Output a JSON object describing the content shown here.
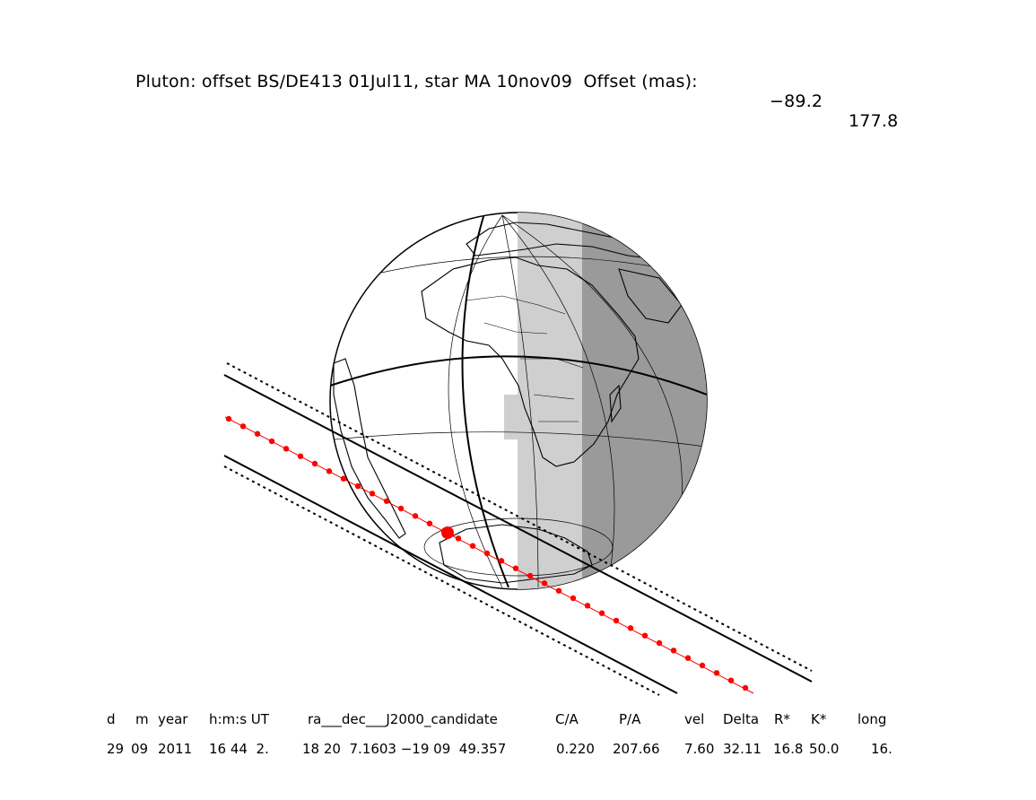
{
  "title": {
    "text": "Pluton: offset BS/DE413 01Jul11, star MA 10nov09  Offset (mas):",
    "offset_ra": "−89.2",
    "offset_dec": "177.8"
  },
  "table": {
    "headers": [
      "d",
      "m",
      "year",
      "h:m:s UT",
      "ra___dec___J2000_candidate",
      "C/A",
      "P/A",
      "vel",
      "Delta",
      "R*",
      "K*",
      "long"
    ],
    "values": [
      "29",
      "09",
      "2011",
      "16 44  2.",
      "18 20  7.1603 −19 09  49.357",
      "0.220",
      "207.66",
      "7.60",
      "32.11",
      "16.8",
      "50.0",
      "16."
    ]
  },
  "colors": {
    "path": "#ff0000",
    "night_shade": "#9a9a9a",
    "twilight_shade": "#cfcfcf",
    "lines": "#000000"
  }
}
